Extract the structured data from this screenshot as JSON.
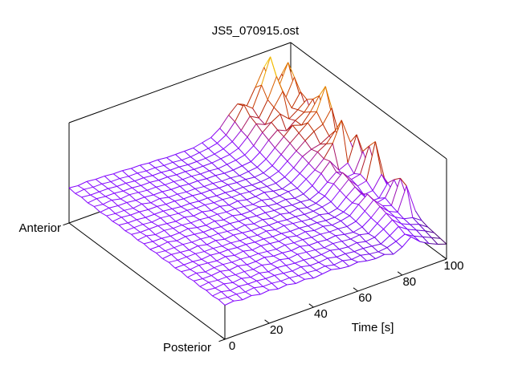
{
  "title": "JS5_070915.ost",
  "background": "#ffffff",
  "axes": {
    "time": {
      "label": "Time [s]",
      "ticks": [
        0,
        20,
        40,
        60,
        80,
        100
      ],
      "range": [
        0,
        100
      ]
    },
    "ap": {
      "start_label": "Posterior",
      "end_label": "Anterior"
    },
    "z": {
      "label": "",
      "ticks_visible": false
    }
  },
  "palette": {
    "name": "gnuplot-rgbformulae-7-5-15",
    "low": "#4a0090",
    "mid": "#b22000",
    "high": "#ffff00",
    "line_color_rule": "height-mapped: r=sqrt(g), g=g^3, b=sin(360*g)"
  },
  "chart_data": {
    "type": "surface-waterfall-3d",
    "title": "JS5_070915.ost",
    "xlabel": "Time [s]",
    "row_axis": "Posterior (0) to Anterior (1)",
    "grid": "26 traces x 26 time samples, hidden-line wireframe",
    "z_note": "values are normalized height fraction of the z box (0 = base plane, 1 = box top); flat baseline ~0.34, tallest peak 1.0 near time 88 at anterior end",
    "t": [
      0,
      4,
      8,
      12,
      16,
      20,
      24,
      28,
      32,
      36,
      40,
      44,
      48,
      52,
      56,
      60,
      64,
      68,
      72,
      76,
      80,
      84,
      88,
      92,
      96,
      100
    ],
    "a": [
      0,
      0.04,
      0.08,
      0.12,
      0.16,
      0.2,
      0.24,
      0.28,
      0.32,
      0.36,
      0.4,
      0.44,
      0.48,
      0.52,
      0.56,
      0.6,
      0.64,
      0.68,
      0.72,
      0.76,
      0.8,
      0.84,
      0.88,
      0.92,
      0.96,
      1
    ],
    "z": [
      [
        0.34,
        0.35,
        0.33,
        0.34,
        0.32,
        0.33,
        0.31,
        0.32,
        0.3,
        0.31,
        0.29,
        0.3,
        0.31,
        0.29,
        0.28,
        0.29,
        0.27,
        0.26,
        0.27,
        0.24,
        0.28,
        0.35,
        0.27,
        0.22,
        0.18,
        0.15
      ],
      [
        0.35,
        0.34,
        0.34,
        0.33,
        0.34,
        0.32,
        0.32,
        0.31,
        0.31,
        0.3,
        0.3,
        0.29,
        0.3,
        0.28,
        0.29,
        0.27,
        0.28,
        0.26,
        0.25,
        0.26,
        0.29,
        0.33,
        0.28,
        0.24,
        0.2,
        0.16
      ],
      [
        0.34,
        0.35,
        0.33,
        0.34,
        0.33,
        0.33,
        0.32,
        0.32,
        0.31,
        0.3,
        0.31,
        0.29,
        0.29,
        0.3,
        0.28,
        0.28,
        0.27,
        0.27,
        0.26,
        0.25,
        0.3,
        0.36,
        0.3,
        0.26,
        0.22,
        0.17
      ],
      [
        0.35,
        0.34,
        0.35,
        0.33,
        0.34,
        0.32,
        0.33,
        0.31,
        0.32,
        0.31,
        0.3,
        0.3,
        0.29,
        0.29,
        0.3,
        0.28,
        0.27,
        0.28,
        0.26,
        0.27,
        0.32,
        0.38,
        0.31,
        0.27,
        0.24,
        0.18
      ],
      [
        0.34,
        0.35,
        0.34,
        0.34,
        0.33,
        0.33,
        0.32,
        0.33,
        0.31,
        0.32,
        0.3,
        0.31,
        0.3,
        0.29,
        0.28,
        0.29,
        0.28,
        0.27,
        0.28,
        0.26,
        0.33,
        0.4,
        0.33,
        0.28,
        0.26,
        0.2
      ],
      [
        0.35,
        0.34,
        0.34,
        0.35,
        0.33,
        0.34,
        0.32,
        0.32,
        0.33,
        0.31,
        0.31,
        0.3,
        0.31,
        0.29,
        0.29,
        0.28,
        0.29,
        0.27,
        0.26,
        0.28,
        0.34,
        0.42,
        0.34,
        0.3,
        0.53,
        0.25
      ],
      [
        0.34,
        0.35,
        0.33,
        0.34,
        0.34,
        0.33,
        0.33,
        0.32,
        0.32,
        0.31,
        0.3,
        0.31,
        0.3,
        0.3,
        0.29,
        0.29,
        0.28,
        0.28,
        0.27,
        0.29,
        0.36,
        0.44,
        0.35,
        0.32,
        0.56,
        0.27
      ],
      [
        0.35,
        0.34,
        0.35,
        0.34,
        0.33,
        0.34,
        0.32,
        0.33,
        0.31,
        0.32,
        0.31,
        0.3,
        0.31,
        0.29,
        0.3,
        0.28,
        0.29,
        0.27,
        0.28,
        0.3,
        0.38,
        0.45,
        0.33,
        0.35,
        0.5,
        0.28
      ],
      [
        0.34,
        0.34,
        0.34,
        0.33,
        0.34,
        0.33,
        0.33,
        0.32,
        0.32,
        0.31,
        0.31,
        0.3,
        0.3,
        0.29,
        0.29,
        0.28,
        0.28,
        0.27,
        0.27,
        0.29,
        0.35,
        0.41,
        0.3,
        0.3,
        0.42,
        0.24
      ],
      [
        0.35,
        0.34,
        0.34,
        0.34,
        0.33,
        0.33,
        0.32,
        0.32,
        0.31,
        0.31,
        0.3,
        0.31,
        0.29,
        0.3,
        0.29,
        0.28,
        0.27,
        0.28,
        0.26,
        0.28,
        0.36,
        0.43,
        0.32,
        0.33,
        0.46,
        0.26
      ],
      [
        0.34,
        0.35,
        0.34,
        0.33,
        0.34,
        0.32,
        0.33,
        0.31,
        0.32,
        0.31,
        0.3,
        0.3,
        0.29,
        0.29,
        0.28,
        0.28,
        0.27,
        0.27,
        0.28,
        0.3,
        0.38,
        0.46,
        0.36,
        0.38,
        0.74,
        0.35
      ],
      [
        0.35,
        0.34,
        0.34,
        0.34,
        0.33,
        0.33,
        0.32,
        0.32,
        0.31,
        0.3,
        0.31,
        0.29,
        0.3,
        0.28,
        0.29,
        0.27,
        0.28,
        0.26,
        0.27,
        0.31,
        0.4,
        0.48,
        0.38,
        0.4,
        0.65,
        0.32
      ],
      [
        0.34,
        0.34,
        0.35,
        0.33,
        0.34,
        0.33,
        0.32,
        0.32,
        0.31,
        0.31,
        0.3,
        0.3,
        0.29,
        0.29,
        0.28,
        0.28,
        0.27,
        0.27,
        0.26,
        0.3,
        0.37,
        0.44,
        0.35,
        0.36,
        0.55,
        0.28
      ],
      [
        0.35,
        0.34,
        0.34,
        0.33,
        0.33,
        0.34,
        0.32,
        0.31,
        0.32,
        0.3,
        0.31,
        0.29,
        0.29,
        0.3,
        0.28,
        0.27,
        0.28,
        0.26,
        0.27,
        0.32,
        0.41,
        0.5,
        0.38,
        0.42,
        0.67,
        0.33
      ],
      [
        0.34,
        0.35,
        0.33,
        0.34,
        0.33,
        0.33,
        0.32,
        0.32,
        0.31,
        0.31,
        0.3,
        0.3,
        0.29,
        0.28,
        0.29,
        0.27,
        0.27,
        0.28,
        0.28,
        0.34,
        0.4,
        0.48,
        0.6,
        0.8,
        0.55,
        0.3
      ],
      [
        0.35,
        0.34,
        0.34,
        0.34,
        0.33,
        0.32,
        0.33,
        0.31,
        0.32,
        0.3,
        0.31,
        0.29,
        0.3,
        0.28,
        0.28,
        0.29,
        0.27,
        0.26,
        0.29,
        0.35,
        0.42,
        0.5,
        0.55,
        0.65,
        0.48,
        0.28
      ],
      [
        0.34,
        0.34,
        0.34,
        0.33,
        0.34,
        0.33,
        0.32,
        0.32,
        0.31,
        0.31,
        0.3,
        0.3,
        0.29,
        0.29,
        0.28,
        0.28,
        0.27,
        0.27,
        0.3,
        0.36,
        0.44,
        0.48,
        0.5,
        0.55,
        0.42,
        0.26
      ],
      [
        0.35,
        0.34,
        0.34,
        0.33,
        0.33,
        0.33,
        0.32,
        0.31,
        0.31,
        0.3,
        0.3,
        0.29,
        0.29,
        0.28,
        0.28,
        0.27,
        0.27,
        0.28,
        0.31,
        0.38,
        0.45,
        0.52,
        0.58,
        0.62,
        0.75,
        0.4
      ],
      [
        0.34,
        0.35,
        0.34,
        0.34,
        0.33,
        0.33,
        0.32,
        0.32,
        0.31,
        0.31,
        0.3,
        0.3,
        0.29,
        0.29,
        0.28,
        0.28,
        0.27,
        0.28,
        0.32,
        0.4,
        0.48,
        0.55,
        0.62,
        0.7,
        0.92,
        0.48
      ],
      [
        0.35,
        0.34,
        0.34,
        0.33,
        0.34,
        0.32,
        0.33,
        0.31,
        0.31,
        0.3,
        0.3,
        0.29,
        0.29,
        0.28,
        0.28,
        0.27,
        0.28,
        0.29,
        0.34,
        0.42,
        0.5,
        0.58,
        0.55,
        0.65,
        0.78,
        0.42
      ],
      [
        0.34,
        0.35,
        0.34,
        0.34,
        0.33,
        0.33,
        0.32,
        0.32,
        0.31,
        0.31,
        0.3,
        0.3,
        0.29,
        0.29,
        0.28,
        0.28,
        0.29,
        0.3,
        0.36,
        0.45,
        0.52,
        0.48,
        0.55,
        0.6,
        0.7,
        0.38
      ],
      [
        0.35,
        0.34,
        0.35,
        0.33,
        0.34,
        0.33,
        0.32,
        0.32,
        0.31,
        0.31,
        0.3,
        0.3,
        0.29,
        0.29,
        0.28,
        0.29,
        0.3,
        0.32,
        0.38,
        0.48,
        0.55,
        0.6,
        0.52,
        0.58,
        0.65,
        0.36
      ],
      [
        0.34,
        0.35,
        0.34,
        0.34,
        0.33,
        0.33,
        0.32,
        0.32,
        0.31,
        0.31,
        0.3,
        0.3,
        0.29,
        0.29,
        0.29,
        0.3,
        0.31,
        0.34,
        0.42,
        0.52,
        0.48,
        0.62,
        0.75,
        0.55,
        0.68,
        0.4
      ],
      [
        0.35,
        0.34,
        0.34,
        0.34,
        0.33,
        0.33,
        0.32,
        0.32,
        0.31,
        0.31,
        0.3,
        0.3,
        0.29,
        0.29,
        0.29,
        0.3,
        0.32,
        0.36,
        0.44,
        0.55,
        0.5,
        0.65,
        0.85,
        0.6,
        0.78,
        0.45
      ],
      [
        0.34,
        0.35,
        0.34,
        0.34,
        0.33,
        0.33,
        0.32,
        0.32,
        0.31,
        0.31,
        0.3,
        0.3,
        0.29,
        0.29,
        0.3,
        0.31,
        0.33,
        0.38,
        0.48,
        0.62,
        0.55,
        0.75,
        1.0,
        0.68,
        0.88,
        0.5
      ],
      [
        0.35,
        0.34,
        0.35,
        0.34,
        0.34,
        0.33,
        0.33,
        0.32,
        0.32,
        0.31,
        0.31,
        0.3,
        0.3,
        0.3,
        0.3,
        0.32,
        0.34,
        0.4,
        0.5,
        0.58,
        0.52,
        0.68,
        0.85,
        0.58,
        0.72,
        0.42
      ]
    ]
  }
}
